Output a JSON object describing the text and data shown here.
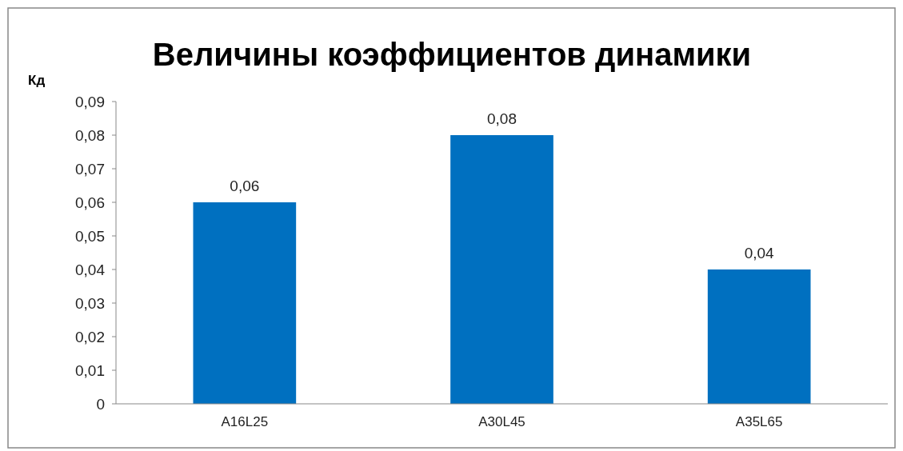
{
  "chart_data": {
    "type": "bar",
    "title": "Величины коэффициентов динамики",
    "ylabel": "Кд",
    "categories": [
      "A16L25",
      "A30L45",
      "A35L65"
    ],
    "values": [
      0.06,
      0.08,
      0.04
    ],
    "value_labels": [
      "0,06",
      "0,08",
      "0,04"
    ],
    "color": "#0070c0",
    "ylim": [
      0,
      0.09
    ],
    "yticks": [
      {
        "value": 0,
        "label": "0"
      },
      {
        "value": 0.01,
        "label": "0,01"
      },
      {
        "value": 0.02,
        "label": "0,02"
      },
      {
        "value": 0.03,
        "label": "0,03"
      },
      {
        "value": 0.04,
        "label": "0,04"
      },
      {
        "value": 0.05,
        "label": "0,05"
      },
      {
        "value": 0.06,
        "label": "0,06"
      },
      {
        "value": 0.07,
        "label": "0,07"
      },
      {
        "value": 0.08,
        "label": "0,08"
      },
      {
        "value": 0.09,
        "label": "0,09"
      }
    ],
    "grid": false
  }
}
